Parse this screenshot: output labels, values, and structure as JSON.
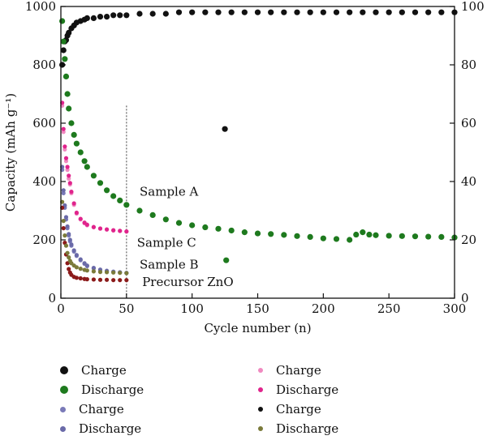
{
  "chart_data": {
    "type": "scatter",
    "xlabel": "Cycle number (n)",
    "ylabel": "Capacity (mAh g⁻¹)",
    "xlim": [
      0,
      300
    ],
    "ylim": [
      0,
      1000
    ],
    "y2lim": [
      0,
      100
    ],
    "x_ticks": [
      "0",
      "50",
      "100",
      "150",
      "200",
      "250",
      "300"
    ],
    "y_ticks": [
      "0",
      "200",
      "400",
      "600",
      "800",
      "1000"
    ],
    "y2_ticks": [
      "0",
      "20",
      "40",
      "60",
      "80",
      "100"
    ],
    "grid": false,
    "vline_x": 50,
    "series": [
      {
        "name": "Charge",
        "color": "#111111",
        "axis": "right",
        "sample": "A",
        "x": [
          1,
          2,
          3,
          4,
          5,
          6,
          8,
          10,
          12,
          15,
          18,
          20,
          25,
          30,
          35,
          40,
          45,
          50,
          60,
          70,
          80,
          90,
          100,
          110,
          120,
          125,
          130,
          140,
          150,
          160,
          170,
          180,
          190,
          200,
          210,
          220,
          230,
          240,
          250,
          260,
          270,
          280,
          290,
          300
        ],
        "y": [
          80,
          85,
          88,
          88.5,
          90,
          91,
          92.5,
          93.5,
          94.5,
          95,
          95.5,
          96,
          96,
          96.5,
          96.5,
          97,
          97,
          97,
          97.5,
          97.5,
          97.5,
          98,
          98,
          98,
          98,
          58,
          98,
          98,
          98,
          98,
          98,
          98,
          98,
          98,
          98,
          98,
          98,
          98,
          98,
          98,
          98,
          98,
          98,
          98
        ]
      },
      {
        "name": "Discharge",
        "color": "#1e7a1e",
        "axis": "left",
        "sample": "A",
        "x": [
          1,
          2,
          3,
          4,
          5,
          6,
          8,
          10,
          12,
          15,
          18,
          20,
          25,
          30,
          35,
          40,
          45,
          50,
          60,
          70,
          80,
          90,
          100,
          110,
          120,
          126,
          130,
          140,
          150,
          160,
          170,
          180,
          190,
          200,
          210,
          220,
          225,
          230,
          235,
          240,
          250,
          260,
          270,
          280,
          290,
          300
        ],
        "y": [
          950,
          880,
          820,
          760,
          700,
          650,
          600,
          560,
          530,
          500,
          470,
          450,
          420,
          395,
          370,
          350,
          335,
          320,
          300,
          285,
          270,
          258,
          250,
          243,
          238,
          130,
          232,
          226,
          222,
          220,
          217,
          213,
          210,
          205,
          203,
          200,
          218,
          226,
          218,
          216,
          214,
          213,
          212,
          211,
          210,
          208
        ]
      },
      {
        "name": "Charge",
        "color": "#f08ac0",
        "axis": "left",
        "sample": "C",
        "x": [
          1,
          2,
          3,
          4,
          5,
          6,
          7,
          8,
          10,
          12,
          15,
          18,
          20,
          25,
          30,
          35,
          40,
          45,
          50
        ],
        "y": [
          660,
          570,
          510,
          470,
          440,
          410,
          390,
          360,
          320,
          290,
          270,
          257,
          250,
          243,
          238,
          235,
          232,
          230,
          228
        ]
      },
      {
        "name": "Discharge",
        "color": "#e0248c",
        "axis": "left",
        "sample": "C",
        "x": [
          1,
          2,
          3,
          4,
          5,
          6,
          7,
          8,
          10,
          12,
          15,
          18,
          20,
          25,
          30,
          35,
          40,
          45,
          50
        ],
        "y": [
          670,
          580,
          520,
          480,
          450,
          420,
          395,
          365,
          325,
          293,
          272,
          259,
          252,
          244,
          239,
          236,
          233,
          231,
          229
        ]
      },
      {
        "name": "Charge",
        "color": "#7a7ab8",
        "axis": "left",
        "sample": "B",
        "x": [
          1,
          2,
          3,
          4,
          5,
          6,
          7,
          8,
          10,
          12,
          15,
          18,
          20,
          25,
          30,
          35,
          40,
          45,
          50
        ],
        "y": [
          440,
          360,
          310,
          270,
          240,
          215,
          195,
          180,
          160,
          145,
          130,
          118,
          110,
          102,
          97,
          93,
          90,
          88,
          86
        ]
      },
      {
        "name": "Discharge",
        "color": "#6a6aa8",
        "axis": "left",
        "sample": "B",
        "x": [
          1,
          2,
          3,
          4,
          5,
          6,
          7,
          8,
          10,
          12,
          15,
          18,
          20,
          25,
          30,
          35,
          40,
          45,
          50
        ],
        "y": [
          450,
          370,
          318,
          278,
          246,
          220,
          200,
          184,
          164,
          148,
          133,
          120,
          112,
          104,
          98,
          94,
          91,
          89,
          87
        ]
      },
      {
        "name": "Charge",
        "color": "#8b1a1a",
        "axis": "left",
        "sample": "Precursor ZnO",
        "x": [
          1,
          2,
          3,
          4,
          5,
          6,
          7,
          8,
          10,
          12,
          15,
          18,
          20,
          25,
          30,
          35,
          40,
          45,
          50
        ],
        "y": [
          310,
          240,
          190,
          150,
          120,
          100,
          88,
          80,
          73,
          70,
          68,
          66,
          65,
          64,
          63,
          63,
          62,
          62,
          62
        ]
      },
      {
        "name": "Discharge",
        "color": "#7a7a3a",
        "axis": "left",
        "sample": "Precursor ZnO",
        "x": [
          1,
          2,
          3,
          4,
          5,
          6,
          7,
          8,
          10,
          12,
          15,
          18,
          20,
          25,
          30,
          35,
          40,
          45,
          50
        ],
        "y": [
          330,
          265,
          215,
          180,
          155,
          140,
          128,
          120,
          112,
          106,
          101,
          97,
          95,
          92,
          90,
          89,
          88,
          87,
          86
        ]
      }
    ],
    "annotations": [
      {
        "text": "Sample A",
        "x": 60,
        "y": 365
      },
      {
        "text": "Sample C",
        "x": 58,
        "y": 190
      },
      {
        "text": "Sample B",
        "x": 60,
        "y": 115
      },
      {
        "text": "Precursor ZnO",
        "x": 62,
        "y": 55
      }
    ],
    "legend": [
      {
        "label": "Charge",
        "color": "#111111"
      },
      {
        "label": "Discharge",
        "color": "#1e7a1e"
      },
      {
        "label": "Charge",
        "color": "#7a7ab8"
      },
      {
        "label": "Discharge",
        "color": "#6a6aa8"
      },
      {
        "label": "Charge",
        "color": "#f08ac0"
      },
      {
        "label": "Discharge",
        "color": "#e0248c"
      },
      {
        "label": "Charge",
        "color": "#111111"
      },
      {
        "label": "Discharge",
        "color": "#7a7a3a"
      }
    ]
  }
}
